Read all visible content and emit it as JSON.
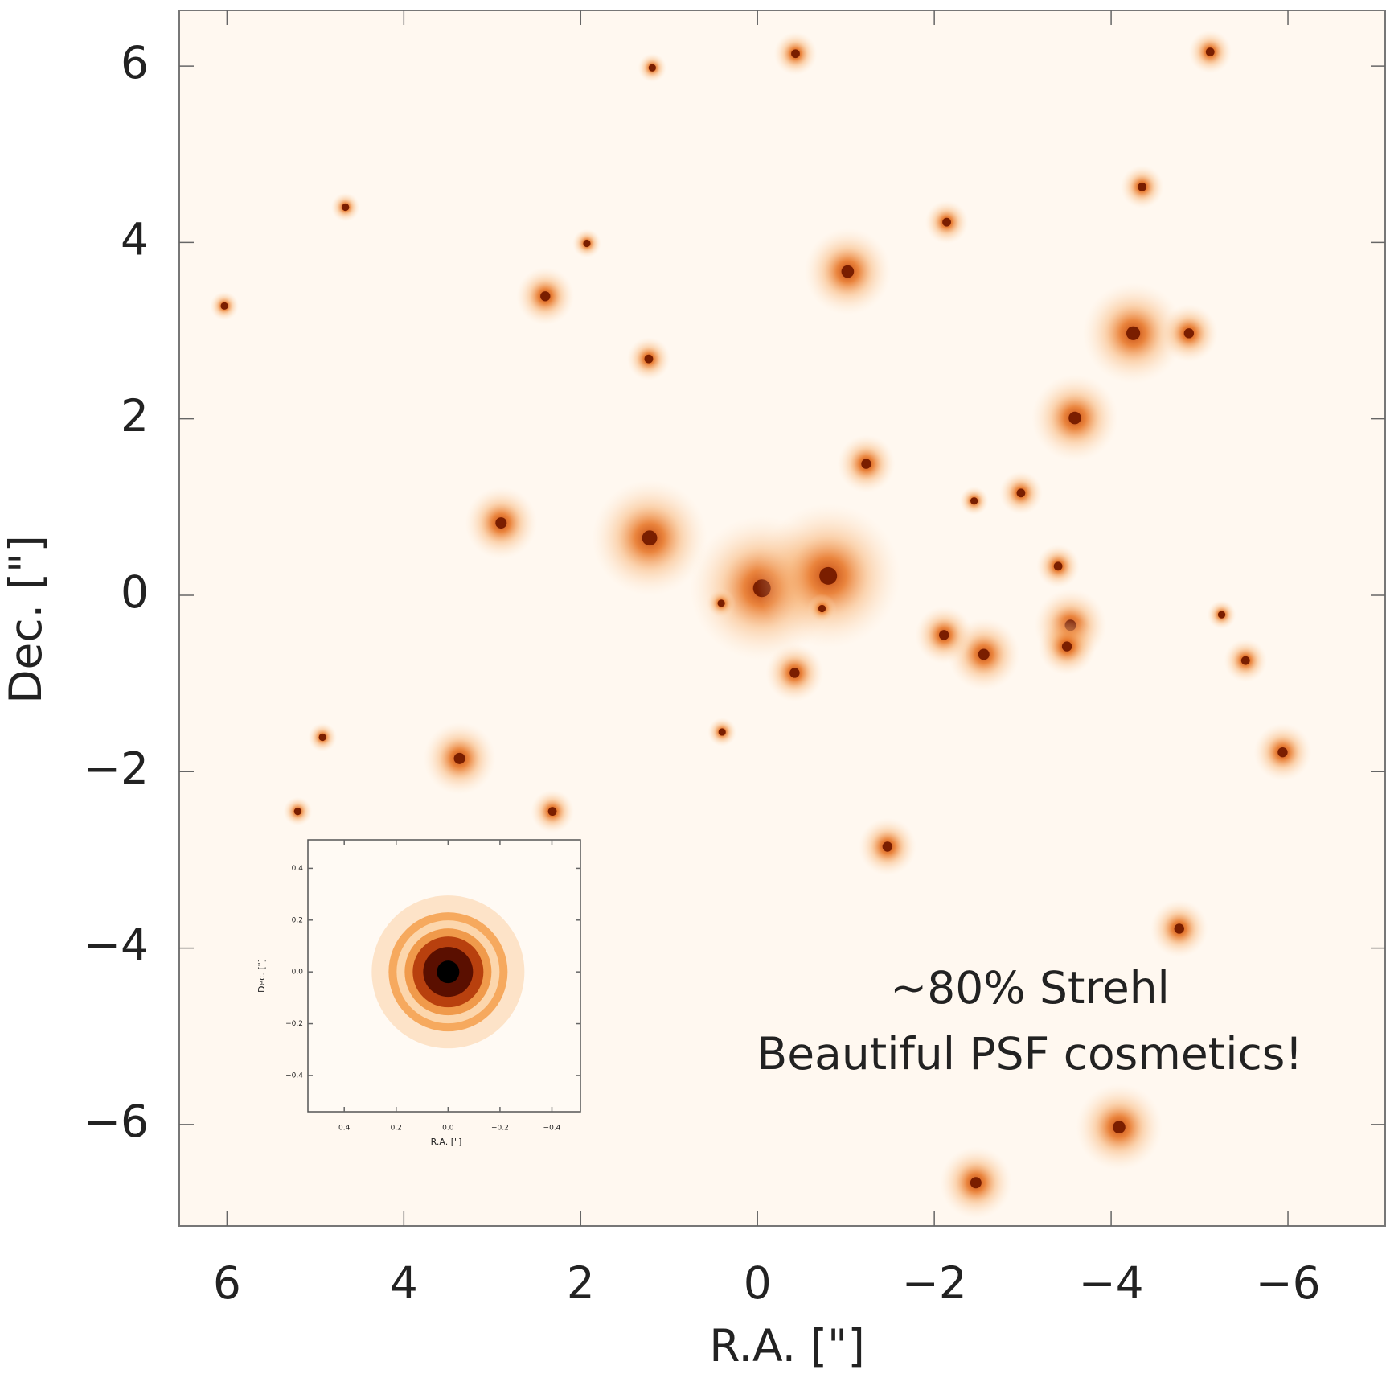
{
  "chart_data": [
    {
      "type": "scatter",
      "xlabel": "R.A. [\"]",
      "ylabel": "Dec. [\"]",
      "xlim": [
        6.54,
        -7.1
      ],
      "ylim": [
        -7.15,
        6.63
      ],
      "xticks": [
        6,
        4,
        2,
        0,
        {
          "value": -2,
          "label": "−2"
        },
        {
          "value": -4,
          "label": "−4"
        },
        {
          "value": -6,
          "label": "−6"
        }
      ],
      "yticks": [
        {
          "value": -6,
          "label": "−6"
        },
        {
          "value": -4,
          "label": "−4"
        },
        {
          "value": -2,
          "label": "−2"
        },
        0,
        2,
        4,
        6
      ],
      "annotations": [
        "~80% Strehl",
        "Beautiful PSF cosmetics!"
      ],
      "series": [
        {
          "color": "#7a1e00",
          "x": [
            -0.05,
            -0.8,
            1.22,
            -1.02,
            -4.25,
            -3.59,
            2.9,
            3.37,
            -1.47,
            -4.09,
            -2.47,
            -4.77,
            -5.94,
            -2.56,
            -2.11,
            -3.54,
            -3.5,
            -0.42,
            1.23,
            2.4,
            -1.23,
            -4.35,
            -5.12,
            -0.43,
            -4.88,
            -2.98,
            -2.14,
            1.19,
            4.66,
            4.92,
            6.03,
            5.2,
            2.32,
            -0.73,
            -2.45,
            1.93,
            -3.4,
            -5.52,
            -5.25,
            0.4,
            0.41
          ],
          "y": [
            0.08,
            0.22,
            0.65,
            3.67,
            2.97,
            2.01,
            0.82,
            -1.85,
            -2.85,
            -6.03,
            -6.66,
            -3.78,
            -1.78,
            -0.67,
            -0.45,
            -0.34,
            -0.58,
            -0.88,
            2.68,
            3.39,
            1.49,
            4.63,
            6.16,
            6.14,
            2.97,
            1.16,
            4.23,
            5.98,
            4.4,
            -1.61,
            3.28,
            -2.45,
            -2.45,
            -0.15,
            1.07,
            3.99,
            0.33,
            -0.74,
            -0.22,
            -1.55,
            -0.09
          ],
          "sizes": [
            10,
            10,
            8,
            6,
            7,
            6,
            5,
            5,
            4,
            6,
            5,
            4,
            4,
            5,
            4,
            5,
            4,
            4,
            3,
            4,
            4,
            3,
            3,
            3,
            4,
            3,
            3,
            2,
            2,
            2,
            2,
            2,
            3,
            2,
            2,
            2,
            3,
            3,
            2,
            2,
            2
          ]
        }
      ]
    },
    {
      "type": "scatter",
      "xlabel": "R.A. [\"]",
      "ylabel": "Dec. [\"]",
      "xlim": [
        0.54,
        -0.51
      ],
      "ylim": [
        -0.54,
        0.51
      ],
      "xticks": [
        0.4,
        0.2,
        {
          "value": 0,
          "label": "0.0"
        },
        {
          "value": -0.2,
          "label": "−0.2"
        },
        {
          "value": -0.4,
          "label": "−0.4"
        }
      ],
      "yticks": [
        {
          "value": -0.4,
          "label": "−0.4"
        },
        {
          "value": -0.2,
          "label": "−0.2"
        },
        {
          "value": 0,
          "label": "0.0"
        },
        0.2,
        0.4
      ],
      "series": [
        {
          "color": "#000000",
          "x": [
            0
          ],
          "y": [
            0
          ]
        }
      ]
    }
  ]
}
